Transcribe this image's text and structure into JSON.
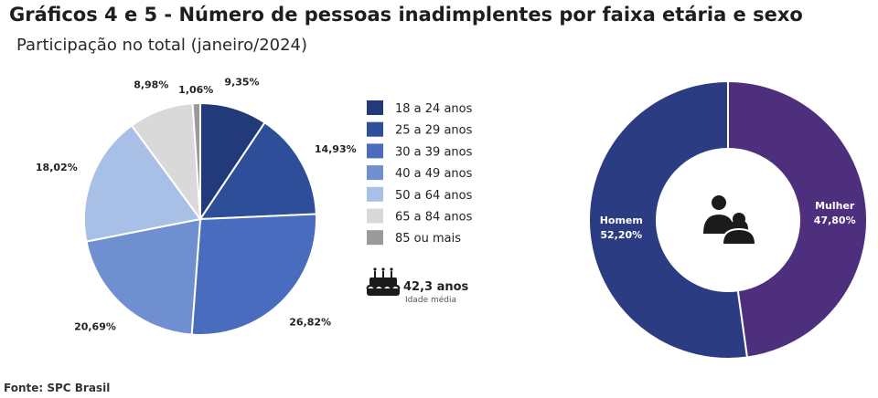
{
  "header": {
    "title": "Gráficos 4 e 5 - Número de pessoas inadimplentes por faixa etária e sexo",
    "subtitle": "Participação no total (janeiro/2024)"
  },
  "average_age": {
    "value": "42,3 anos",
    "label": "Idade média",
    "icon": "birthday-cake-icon"
  },
  "gender_icon": "people-icon",
  "source": "Fonte: SPC Brasil",
  "chart_data": [
    {
      "type": "pie",
      "title": "Número de pessoas inadimplentes por faixa etária",
      "legend_position": "right",
      "slices": [
        {
          "label": "18 a 24 anos",
          "value": 9.35,
          "text": "9,35%",
          "color": "#223a7a"
        },
        {
          "label": "25 a 29 anos",
          "value": 14.93,
          "text": "14,93%",
          "color": "#2f4e9a"
        },
        {
          "label": "30 a 39 anos",
          "value": 26.82,
          "text": "26,82%",
          "color": "#4a6cbe"
        },
        {
          "label": "40 a 49 anos",
          "value": 20.69,
          "text": "20,69%",
          "color": "#6f8fd0"
        },
        {
          "label": "50 a 64 anos",
          "value": 18.02,
          "text": "18,02%",
          "color": "#a9c0e6"
        },
        {
          "label": "65 a 84 anos",
          "value": 8.98,
          "text": "8,98%",
          "color": "#d9d9d9"
        },
        {
          "label": "85 ou mais",
          "value": 1.06,
          "text": "1,06%",
          "color": "#9a9a9a"
        }
      ]
    },
    {
      "type": "pie",
      "subtype": "donut",
      "title": "Número de pessoas inadimplentes por sexo",
      "slices": [
        {
          "label": "Mulher",
          "value": 47.8,
          "text": "47,80%",
          "color": "#4e2f7e"
        },
        {
          "label": "Homem",
          "value": 52.2,
          "text": "52,20%",
          "color": "#2b3c82"
        }
      ]
    }
  ]
}
